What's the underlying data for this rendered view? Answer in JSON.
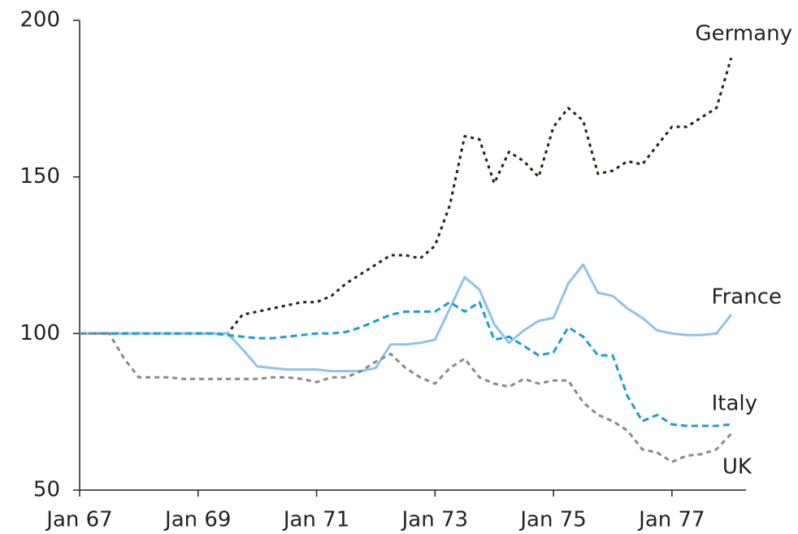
{
  "chart_data": {
    "type": "line",
    "x": [
      1967,
      1967.25,
      1967.5,
      1967.75,
      1968,
      1968.25,
      1968.5,
      1968.75,
      1969,
      1969.25,
      1969.5,
      1969.75,
      1970,
      1970.25,
      1970.5,
      1970.75,
      1971,
      1971.25,
      1971.5,
      1971.75,
      1972,
      1972.25,
      1972.5,
      1972.75,
      1973,
      1973.25,
      1973.5,
      1973.75,
      1974,
      1974.25,
      1974.5,
      1974.75,
      1975,
      1975.25,
      1975.5,
      1975.75,
      1976,
      1976.25,
      1976.5,
      1976.75,
      1977,
      1977.25,
      1977.5,
      1977.75,
      1978
    ],
    "series": [
      {
        "name": "Germany",
        "color": "#2b1d17",
        "dash": "4 5",
        "values": [
          100,
          100,
          100,
          100,
          100,
          100,
          100,
          100,
          100,
          100,
          100,
          106,
          107,
          108,
          109,
          110,
          110,
          112,
          116,
          119,
          122,
          125,
          125,
          124,
          128,
          141,
          163,
          162,
          148,
          158,
          155,
          150,
          166,
          172,
          168,
          151,
          152,
          155,
          154,
          160,
          166,
          166,
          169,
          172,
          188
        ]
      },
      {
        "name": "France",
        "color": "#8fc3e8",
        "dash": "",
        "values": [
          100,
          100,
          100,
          100,
          100,
          100,
          100,
          100,
          100,
          100,
          100,
          95,
          89.5,
          89,
          88.5,
          88.5,
          88.5,
          88,
          88,
          88,
          89,
          96.5,
          96.5,
          97,
          98,
          108,
          118,
          114,
          103,
          97,
          101,
          104,
          105,
          116,
          122,
          113,
          112,
          108,
          105,
          101,
          100,
          99.5,
          99.5,
          100,
          106
        ]
      },
      {
        "name": "Italy",
        "color": "#1a9fd0",
        "dash": "8 5",
        "values": [
          100,
          100,
          100,
          100,
          100,
          100,
          100,
          100,
          100,
          100,
          99.5,
          99,
          98.5,
          98.5,
          99,
          99.5,
          100,
          100,
          100.5,
          102,
          104,
          106,
          107,
          107,
          107,
          110,
          107,
          110,
          98,
          99,
          96,
          93,
          94,
          102,
          99,
          93,
          93,
          80,
          72,
          74,
          71,
          70.5,
          70.5,
          70.5,
          71
        ]
      },
      {
        "name": "UK",
        "color": "#8a8a8a",
        "dash": "6 5",
        "values": [
          100,
          100,
          100,
          92,
          86,
          86,
          86,
          85.5,
          85.5,
          85.5,
          85.5,
          85.5,
          85.5,
          86,
          86,
          85.5,
          84.5,
          86,
          86,
          88,
          91,
          93.5,
          89,
          86,
          84,
          89,
          92,
          86,
          84,
          83,
          85.5,
          84,
          85,
          85,
          78,
          74,
          72,
          69,
          63,
          62,
          59,
          61,
          61.5,
          63,
          68
        ]
      }
    ],
    "xlim": [
      1967,
      1978.25
    ],
    "xticks": [
      {
        "value": 1967,
        "label": "Jan 67"
      },
      {
        "value": 1969,
        "label": "Jan 69"
      },
      {
        "value": 1971,
        "label": "Jan 71"
      },
      {
        "value": 1973,
        "label": "Jan 73"
      },
      {
        "value": 1975,
        "label": "Jan 75"
      },
      {
        "value": 1977,
        "label": "Jan 77"
      }
    ],
    "ylim": [
      50,
      200
    ],
    "yticks": [
      50,
      100,
      150,
      200
    ],
    "grid": false
  }
}
